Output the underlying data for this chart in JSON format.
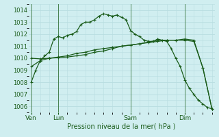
{
  "title": "Pression niveau de la mer( hPa )",
  "bg_color": "#d0eef0",
  "grid_color": "#b8dde0",
  "line_color": "#1a5c1a",
  "ylim": [
    1005.5,
    1014.5
  ],
  "yticks": [
    1006,
    1007,
    1008,
    1009,
    1010,
    1011,
    1012,
    1013,
    1014
  ],
  "xlabel_fontsize": 7.0,
  "day_labels": [
    "Ven",
    "Lun",
    "Sam",
    "Dim"
  ],
  "day_positions": [
    0,
    3,
    11,
    17
  ],
  "vline_positions": [
    0,
    3,
    11,
    17
  ],
  "line1_x": [
    0,
    0.5,
    1,
    1.5,
    2,
    2.5,
    3,
    3.5,
    4,
    4.5,
    5,
    5.5,
    6,
    6.5,
    7,
    7.5,
    8,
    8.5,
    9,
    9.5,
    10,
    10.5,
    11,
    11.5,
    12,
    12.5,
    13,
    13.5,
    14,
    14.5,
    15,
    15.5,
    16,
    16.5,
    17,
    17.5,
    18,
    18.5,
    19,
    19.5,
    20
  ],
  "line1_y": [
    1008.0,
    1009.0,
    1009.8,
    1010.2,
    1010.5,
    1011.6,
    1011.8,
    1011.7,
    1011.9,
    1012.0,
    1012.2,
    1012.8,
    1013.0,
    1013.0,
    1013.2,
    1013.5,
    1013.7,
    1013.6,
    1013.5,
    1013.6,
    1013.4,
    1013.2,
    1012.3,
    1012.0,
    1011.8,
    1011.5,
    1011.4,
    1011.4,
    1011.6,
    1011.5,
    1011.4,
    1010.8,
    1010.0,
    1009.3,
    1008.2,
    1007.5,
    1007.0,
    1006.5,
    1006.2,
    1005.9,
    1005.8
  ],
  "line2_x": [
    0,
    1,
    2,
    3,
    4,
    5,
    6,
    7,
    8,
    9,
    10,
    11,
    12,
    13,
    14,
    15,
    16,
    17,
    18,
    19,
    20
  ],
  "line2_y": [
    1009.3,
    1009.8,
    1010.0,
    1010.1,
    1010.2,
    1010.4,
    1010.5,
    1010.7,
    1010.8,
    1010.9,
    1011.0,
    1011.1,
    1011.2,
    1011.3,
    1011.4,
    1011.5,
    1011.5,
    1011.6,
    1011.5,
    1009.2,
    1005.8
  ],
  "line3_x": [
    0,
    1,
    2,
    3,
    4,
    5,
    6,
    7,
    8,
    9,
    10,
    11,
    12,
    13,
    14,
    15,
    16,
    17,
    18,
    19,
    20
  ],
  "line3_y": [
    1010.0,
    1009.95,
    1010.0,
    1010.05,
    1010.1,
    1010.2,
    1010.3,
    1010.5,
    1010.6,
    1010.8,
    1011.0,
    1011.1,
    1011.2,
    1011.35,
    1011.5,
    1011.5,
    1011.5,
    1011.5,
    1011.4,
    1009.2,
    1005.8
  ]
}
